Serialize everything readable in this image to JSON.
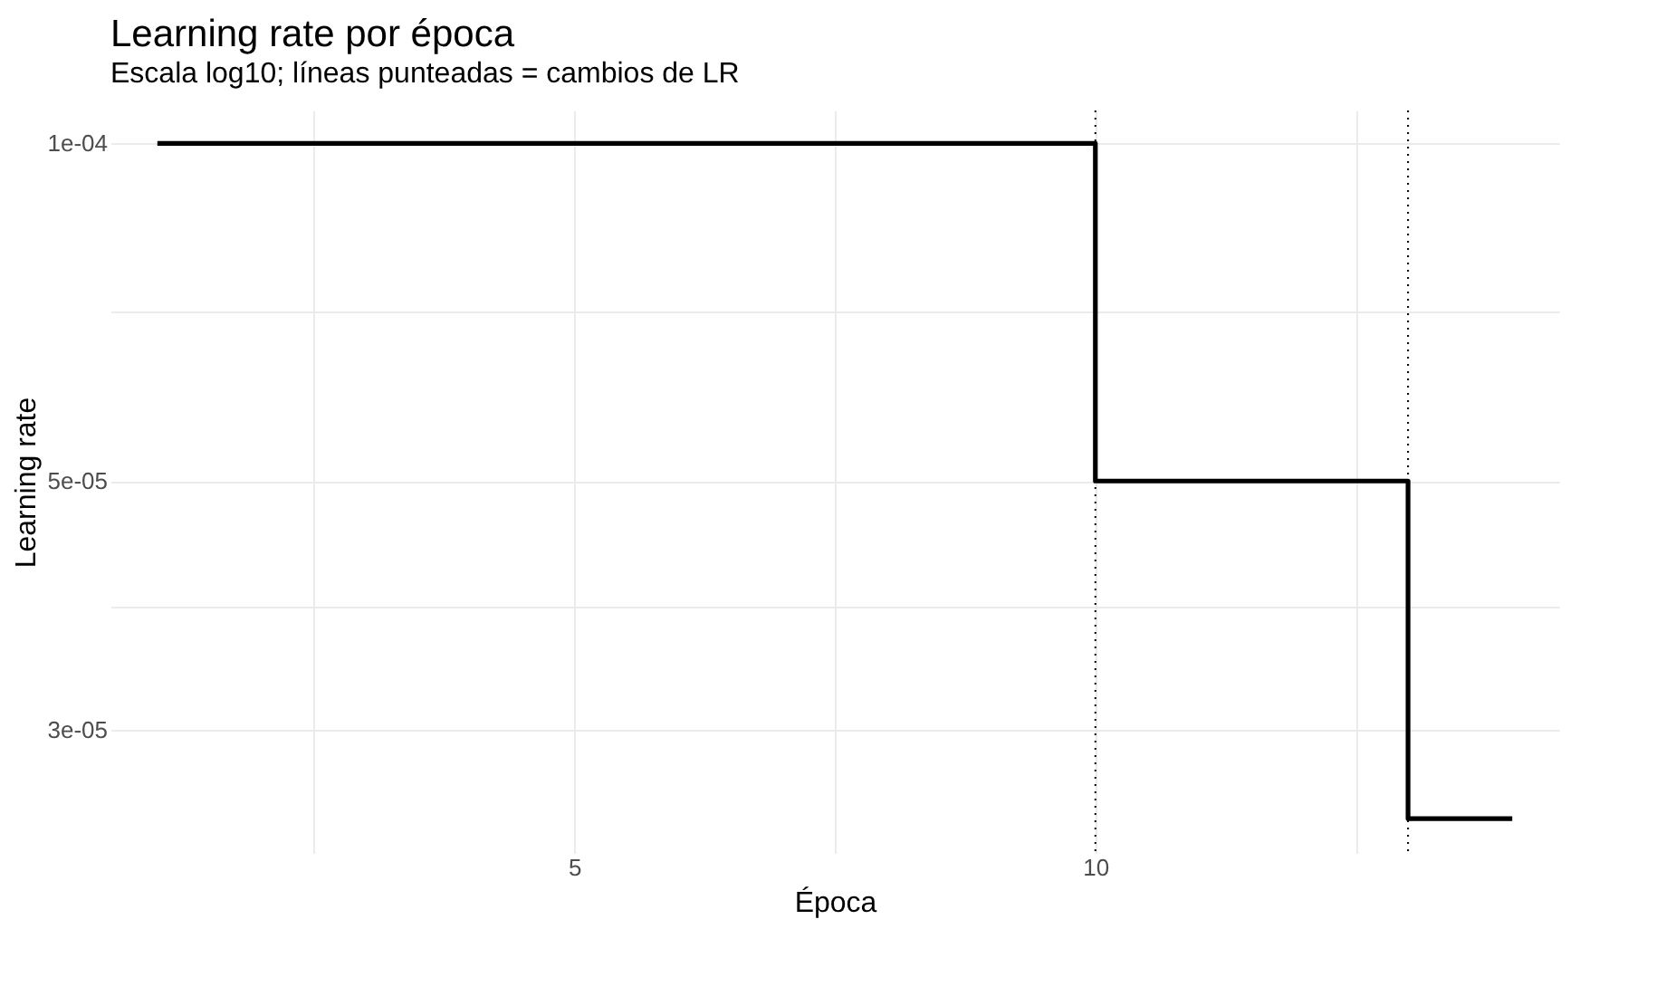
{
  "chart_data": {
    "type": "step",
    "title": "Learning rate por época",
    "subtitle": "Escala log10; líneas punteadas = cambios de LR",
    "xlabel": "Época",
    "ylabel": "Learning rate",
    "x": [
      1,
      10,
      13,
      14
    ],
    "series": [
      {
        "color": "#000000",
        "values": [
          0.0001,
          5e-05,
          2.5e-05,
          2.5e-05
        ]
      }
    ],
    "xlim": [
      0.55,
      14.45
    ],
    "xticks": [
      {
        "value": 2.5,
        "label": null
      },
      5,
      {
        "value": 7.5,
        "label": null
      },
      10,
      {
        "value": 12.5,
        "label": null
      }
    ],
    "ylim": [
      2.33e-05,
      0.000107
    ],
    "log": "y",
    "yticks": [
      {
        "value": 0.0001,
        "label": "1e-04"
      },
      {
        "value": 7.07e-05,
        "label": null
      },
      {
        "value": 5e-05,
        "label": "5e-05"
      },
      {
        "value": 3.87e-05,
        "label": null
      },
      {
        "value": 3e-05,
        "label": "3e-05"
      }
    ],
    "ref_lines": [
      {
        "axis": "x",
        "value": 10,
        "line_style": "dotted",
        "color": "#000000"
      },
      {
        "axis": "x",
        "value": 13,
        "line_style": "dotted",
        "color": "#000000"
      }
    ],
    "grid": true,
    "marker": "none",
    "line_style": "solid"
  }
}
